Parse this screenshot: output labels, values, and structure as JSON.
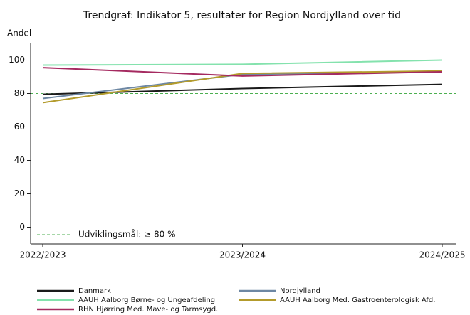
{
  "chart_data": {
    "type": "line",
    "title": "Trendgraf: Indikator 5, resultater for Region Nordjylland over tid",
    "y_label": "Andel",
    "categories": [
      "2022/2023",
      "2023/2024",
      "2024/2025"
    ],
    "series": [
      {
        "name": "Danmark",
        "color": "#1a1a1a",
        "values": [
          79.5,
          83,
          85.5
        ]
      },
      {
        "name": "Nordjylland",
        "color": "#6d87a3",
        "values": [
          77,
          91.5,
          93
        ]
      },
      {
        "name": "AAUH Aalborg Børne- og Ungeafdeling",
        "color": "#84e2ad",
        "values": [
          97,
          97.5,
          100
        ]
      },
      {
        "name": "AAUH Aalborg Med. Gastroenterologisk Afd.",
        "color": "#b39b2c",
        "values": [
          74.5,
          92,
          93.5
        ]
      },
      {
        "name": "RHN Hjørring Med. Mave- og Tarmsygd.",
        "color": "#a52a60",
        "values": [
          95.5,
          90.5,
          93
        ]
      }
    ],
    "reference": {
      "value": 80,
      "label": "Udviklingsmål: ≥ 80 %",
      "color": "#4caf50"
    },
    "ylim": [
      -10,
      110
    ],
    "yticks": [
      0,
      20,
      40,
      60,
      80,
      100
    ]
  }
}
